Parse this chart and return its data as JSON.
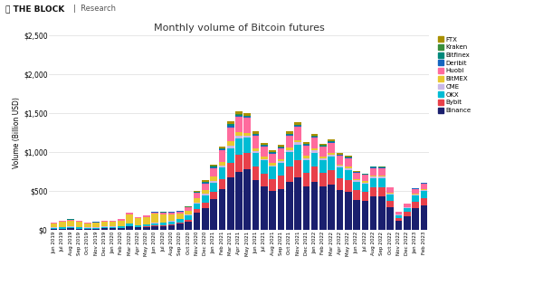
{
  "title": "Monthly volume of Bitcoin futures",
  "ylabel": "Volume (Billion USD)",
  "ylim": [
    0,
    2500
  ],
  "yticks": [
    0,
    500,
    1000,
    1500,
    2000,
    2500
  ],
  "ytick_labels": [
    "$0",
    "$500",
    "$1,000",
    "$1,500",
    "$2,000",
    "$2,500"
  ],
  "background_color": "#f5f5f5",
  "exchanges": [
    "Binance",
    "Bybit",
    "OKX",
    "CME",
    "BitMEX",
    "Huobi",
    "Deribit",
    "Bitfinex",
    "Kraken",
    "FTX"
  ],
  "colors": {
    "Binance": "#1a1f6e",
    "Bybit": "#e8404a",
    "OKX": "#00bcd4",
    "CME": "#c9b8e8",
    "BitMEX": "#e8c830",
    "Huobi": "#ff6b9d",
    "Deribit": "#1565c0",
    "Bitfinex": "#00897b",
    "Kraken": "#388e3c",
    "FTX": "#a89000"
  },
  "months": [
    "Jun 2019",
    "Jul 2019",
    "Aug 2019",
    "Sep 2019",
    "Oct 2019",
    "Nov 2019",
    "Dec 2019",
    "Jan 2020",
    "Feb 2020",
    "Mar 2020",
    "Apr 2020",
    "May 2020",
    "Jun 2020",
    "Jul 2020",
    "Aug 2020",
    "Sep 2020",
    "Oct 2020",
    "Nov 2020",
    "Dec 2020",
    "Jan 2021",
    "Feb 2021",
    "Mar 2021",
    "Apr 2021",
    "May 2021",
    "Jun 2021",
    "Jul 2021",
    "Aug 2021",
    "Sep 2021",
    "Oct 2021",
    "Nov 2021",
    "Dec 2021",
    "Jan 2022",
    "Feb 2022",
    "Mar 2022",
    "Apr 2022",
    "May 2022",
    "Jun 2022",
    "Jul 2022",
    "Aug 2022",
    "Sep 2022",
    "Oct 2022",
    "Nov 2022",
    "Dec 2022",
    "Jan 2023",
    "Feb 2023"
  ],
  "data": {
    "Binance": [
      15,
      18,
      22,
      18,
      15,
      16,
      22,
      22,
      25,
      50,
      35,
      40,
      50,
      55,
      65,
      80,
      110,
      220,
      280,
      400,
      530,
      680,
      750,
      780,
      640,
      560,
      500,
      530,
      620,
      680,
      560,
      620,
      560,
      590,
      510,
      490,
      390,
      380,
      430,
      430,
      295,
      120,
      175,
      280,
      320
    ],
    "Bybit": [
      1,
      2,
      2,
      2,
      1,
      1,
      2,
      2,
      3,
      4,
      4,
      5,
      7,
      7,
      9,
      14,
      22,
      45,
      75,
      95,
      125,
      185,
      220,
      210,
      175,
      165,
      155,
      165,
      195,
      215,
      175,
      195,
      175,
      185,
      155,
      150,
      125,
      115,
      125,
      125,
      85,
      38,
      55,
      85,
      95
    ],
    "OKX": [
      12,
      15,
      17,
      15,
      12,
      13,
      15,
      15,
      17,
      26,
      21,
      24,
      30,
      33,
      37,
      44,
      54,
      72,
      92,
      118,
      148,
      185,
      205,
      195,
      178,
      168,
      158,
      168,
      188,
      205,
      168,
      178,
      158,
      168,
      140,
      135,
      107,
      102,
      116,
      116,
      79,
      35,
      51,
      79,
      88
    ],
    "CME": [
      5,
      5,
      5,
      5,
      5,
      5,
      5,
      5,
      5,
      7,
      4,
      4,
      4,
      4,
      5,
      7,
      9,
      14,
      19,
      23,
      28,
      38,
      33,
      28,
      23,
      19,
      19,
      21,
      26,
      28,
      23,
      28,
      26,
      26,
      21,
      21,
      16,
      16,
      19,
      19,
      13,
      6,
      9,
      13,
      15
    ],
    "BitMEX": [
      55,
      65,
      75,
      65,
      55,
      58,
      65,
      65,
      75,
      115,
      88,
      98,
      118,
      105,
      88,
      65,
      55,
      55,
      47,
      47,
      47,
      56,
      47,
      39,
      31,
      28,
      26,
      28,
      31,
      31,
      25,
      25,
      23,
      23,
      19,
      19,
      14,
      14,
      16,
      16,
      11,
      5,
      7,
      10,
      11
    ],
    "Huobi": [
      8,
      10,
      12,
      10,
      8,
      9,
      10,
      10,
      12,
      17,
      13,
      15,
      19,
      21,
      24,
      30,
      39,
      70,
      88,
      115,
      142,
      178,
      196,
      187,
      161,
      134,
      125,
      134,
      152,
      165,
      134,
      138,
      125,
      130,
      109,
      106,
      83,
      81,
      91,
      90,
      61,
      27,
      40,
      61,
      68
    ],
    "Deribit": [
      2,
      2,
      2,
      2,
      2,
      2,
      2,
      2,
      2,
      3,
      2,
      2,
      2,
      2,
      3,
      4,
      5,
      8,
      10,
      12,
      15,
      20,
      18,
      15,
      12,
      10,
      10,
      11,
      13,
      14,
      11,
      12,
      11,
      11,
      9,
      9,
      7,
      7,
      8,
      8,
      5,
      2,
      3,
      5,
      5
    ],
    "Bitfinex": [
      2,
      2,
      3,
      2,
      2,
      2,
      2,
      2,
      2,
      3,
      2,
      2,
      3,
      3,
      3,
      4,
      5,
      7,
      8,
      10,
      12,
      15,
      14,
      12,
      10,
      9,
      8,
      9,
      10,
      11,
      9,
      9,
      8,
      9,
      7,
      7,
      5,
      5,
      6,
      6,
      4,
      2,
      3,
      4,
      4
    ],
    "Kraken": [
      1,
      1,
      1,
      1,
      1,
      1,
      1,
      1,
      1,
      2,
      1,
      1,
      1,
      1,
      1,
      2,
      2,
      3,
      4,
      5,
      6,
      8,
      7,
      6,
      5,
      5,
      4,
      4,
      5,
      5,
      4,
      4,
      4,
      4,
      3,
      3,
      2,
      2,
      3,
      3,
      2,
      1,
      1,
      2,
      2
    ],
    "FTX": [
      0,
      0,
      0,
      0,
      0,
      0,
      0,
      0,
      0,
      0,
      0,
      0,
      0,
      0,
      0,
      0,
      5,
      10,
      15,
      20,
      25,
      35,
      38,
      35,
      30,
      25,
      22,
      24,
      28,
      30,
      24,
      25,
      22,
      23,
      19,
      18,
      14,
      0,
      0,
      0,
      0,
      0,
      0,
      0,
      0
    ]
  }
}
